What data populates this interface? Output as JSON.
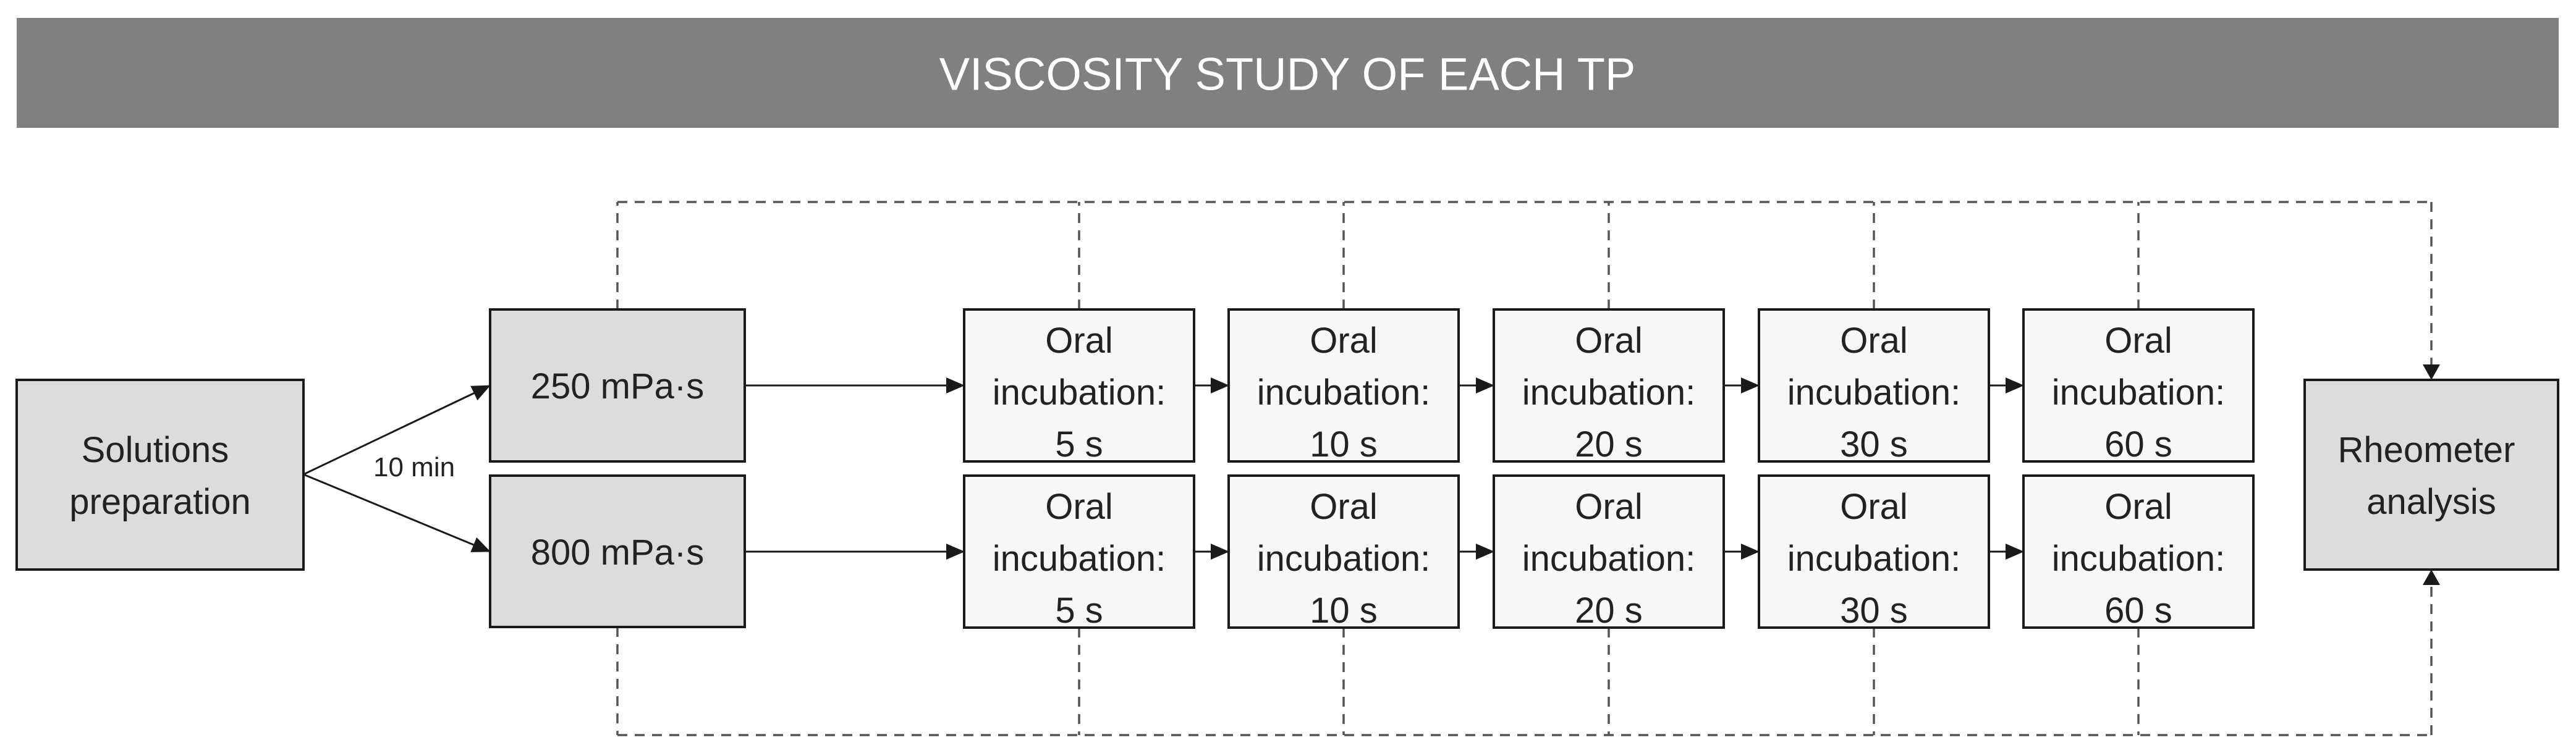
{
  "title": "VISCOSITY STUDY OF EACH TP",
  "colors": {
    "banner": "#808080",
    "box_gray": "#dcdcdc",
    "box_light": "#f7f7f7",
    "stroke": "#1a1a1a",
    "dashed": "#555555"
  },
  "nodes": {
    "solutions_preparation": [
      "Solutions",
      "preparation"
    ],
    "viscosity_250": [
      "250 mPa·s"
    ],
    "viscosity_800": [
      "800 mPa·s"
    ],
    "rheometer_analysis": [
      "Rheometer",
      "analysis"
    ]
  },
  "edge_label": "10 min",
  "incubation_times": [
    "5 s",
    "10 s",
    "20 s",
    "30 s",
    "60 s"
  ],
  "incubation_label_lines": [
    "Oral",
    "incubation:"
  ],
  "rows": [
    "250 mPa·s",
    "800 mPa·s"
  ]
}
